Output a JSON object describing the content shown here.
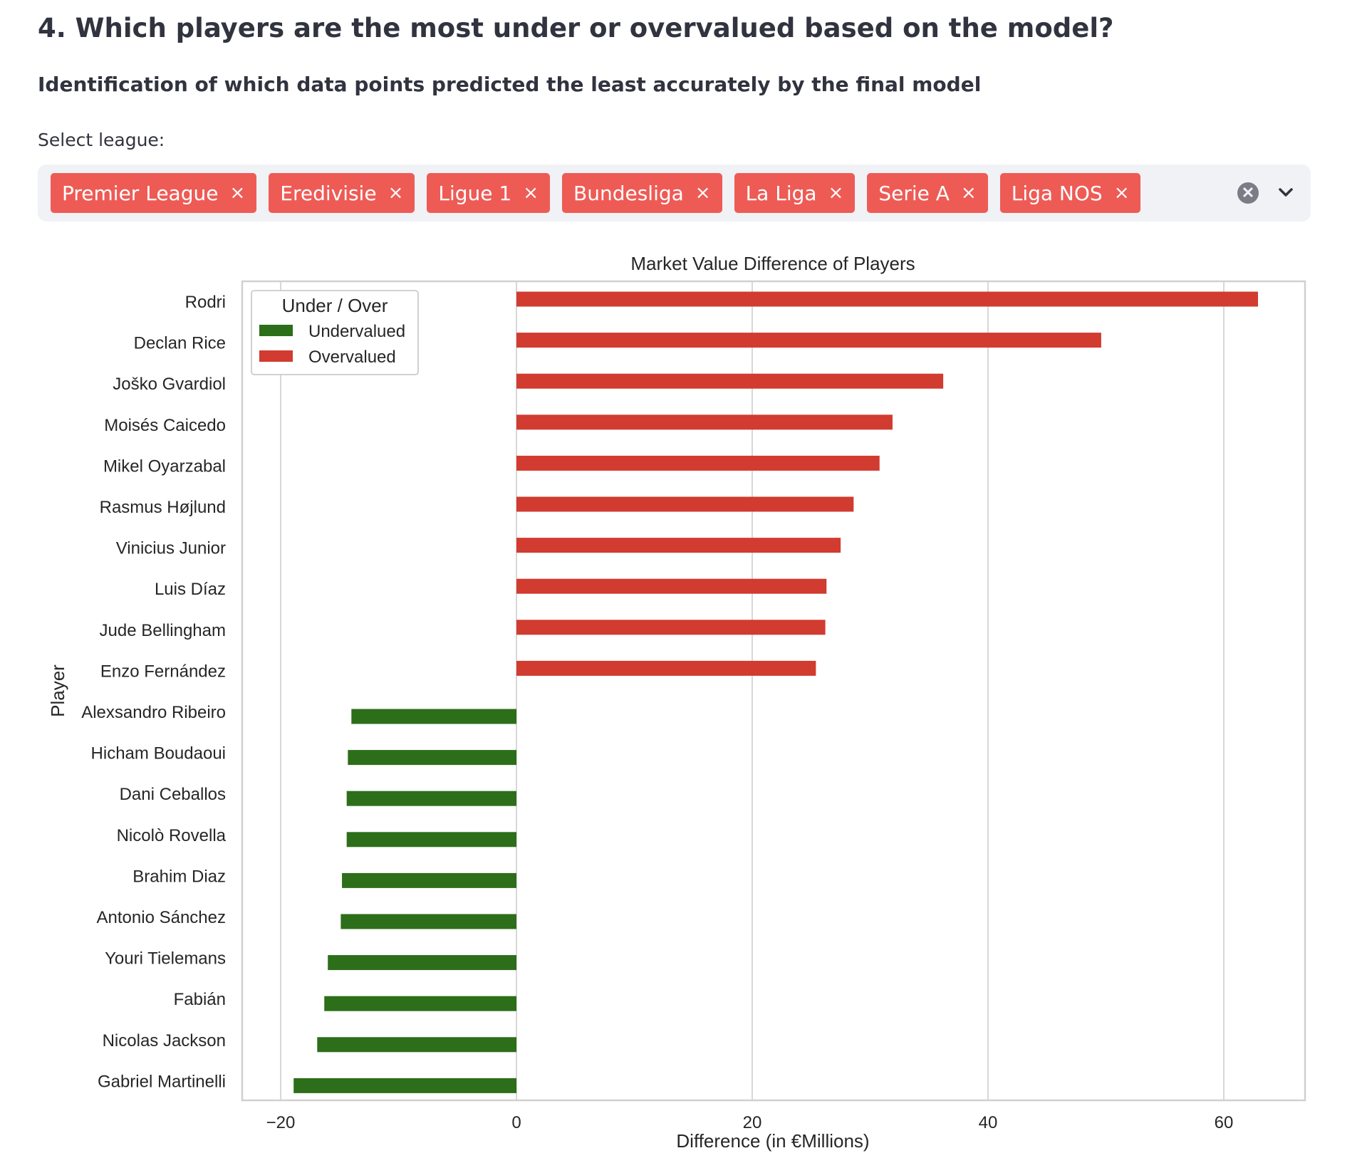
{
  "header": {
    "title": "4. Which players are the most under or overvalued based on the model?",
    "subtitle": "Identification of which data points predicted the least accurately by the final model"
  },
  "filter": {
    "label": "Select league:",
    "selected": [
      "Premier League",
      "Eredivisie",
      "Ligue 1",
      "Bundesliga",
      "La Liga",
      "Serie A",
      "Liga NOS"
    ],
    "remove_glyph": "×",
    "clear_glyph": "✕",
    "icons": {
      "clear": "clear-all-icon",
      "expand": "chevron-down-icon"
    }
  },
  "chart_data": {
    "type": "bar",
    "orientation": "horizontal",
    "title": "Market Value Difference of Players",
    "xlabel": "Difference (in €Millions)",
    "ylabel": "Player",
    "xlim": [
      -20,
      65
    ],
    "xticks": [
      -20,
      0,
      20,
      40,
      60
    ],
    "grid": true,
    "legend": {
      "title": "Under / Over",
      "position": "top-left",
      "entries": [
        "Undervalued",
        "Overvalued"
      ]
    },
    "colors": {
      "Undervalued": "#2c6e1a",
      "Overvalued": "#d13b30"
    },
    "categories": [
      "Rodri",
      "Declan Rice",
      "Joško Gvardiol",
      "Moisés Caicedo",
      "Mikel Oyarzabal",
      "Rasmus Højlund",
      "Vinicius Junior",
      "Luis Díaz",
      "Jude Bellingham",
      "Enzo Fernández",
      "Alexsandro Ribeiro",
      "Hicham Boudaoui",
      "Dani Ceballos",
      "Nicolò Rovella",
      "Brahim Diaz",
      "Antonio Sánchez",
      "Youri Tielemans",
      "Fabián",
      "Nicolas Jackson",
      "Gabriel Martinelli"
    ],
    "values": [
      62.9,
      49.6,
      36.2,
      31.9,
      30.8,
      28.6,
      27.5,
      26.3,
      26.2,
      25.4,
      -14.0,
      -14.3,
      -14.4,
      -14.4,
      -14.8,
      -14.9,
      -16.0,
      -16.3,
      -16.9,
      -18.9
    ],
    "groups": [
      "Overvalued",
      "Overvalued",
      "Overvalued",
      "Overvalued",
      "Overvalued",
      "Overvalued",
      "Overvalued",
      "Overvalued",
      "Overvalued",
      "Overvalued",
      "Undervalued",
      "Undervalued",
      "Undervalued",
      "Undervalued",
      "Undervalued",
      "Undervalued",
      "Undervalued",
      "Undervalued",
      "Undervalued",
      "Undervalued"
    ]
  }
}
